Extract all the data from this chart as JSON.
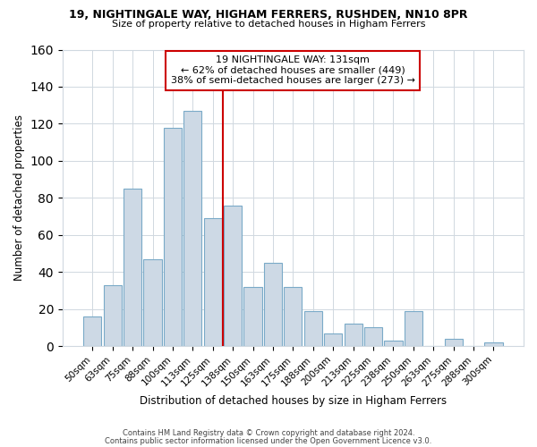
{
  "title_line1": "19, NIGHTINGALE WAY, HIGHAM FERRERS, RUSHDEN, NN10 8PR",
  "title_line2": "Size of property relative to detached houses in Higham Ferrers",
  "xlabel": "Distribution of detached houses by size in Higham Ferrers",
  "ylabel": "Number of detached properties",
  "bar_labels": [
    "50sqm",
    "63sqm",
    "75sqm",
    "88sqm",
    "100sqm",
    "113sqm",
    "125sqm",
    "138sqm",
    "150sqm",
    "163sqm",
    "175sqm",
    "188sqm",
    "200sqm",
    "213sqm",
    "225sqm",
    "238sqm",
    "250sqm",
    "263sqm",
    "275sqm",
    "288sqm",
    "300sqm"
  ],
  "bar_heights": [
    16,
    33,
    85,
    47,
    118,
    127,
    69,
    76,
    32,
    45,
    32,
    19,
    7,
    12,
    10,
    3,
    19,
    0,
    4,
    0,
    2
  ],
  "bar_color": "#cdd9e5",
  "bar_edge_color": "#7aaac8",
  "vline_x": 7,
  "annotation_line1": "19 NIGHTINGALE WAY: 131sqm",
  "annotation_line2": "← 62% of detached houses are smaller (449)",
  "annotation_line3": "38% of semi-detached houses are larger (273) →",
  "annotation_box_color": "#ffffff",
  "annotation_box_edge": "#cc0000",
  "vline_color": "#cc0000",
  "ylim": [
    0,
    160
  ],
  "yticks": [
    0,
    20,
    40,
    60,
    80,
    100,
    120,
    140,
    160
  ],
  "footer_line1": "Contains HM Land Registry data © Crown copyright and database right 2024.",
  "footer_line2": "Contains public sector information licensed under the Open Government Licence v3.0.",
  "bg_color": "#ffffff",
  "plot_bg_color": "#ffffff",
  "grid_color": "#d0d8e0"
}
